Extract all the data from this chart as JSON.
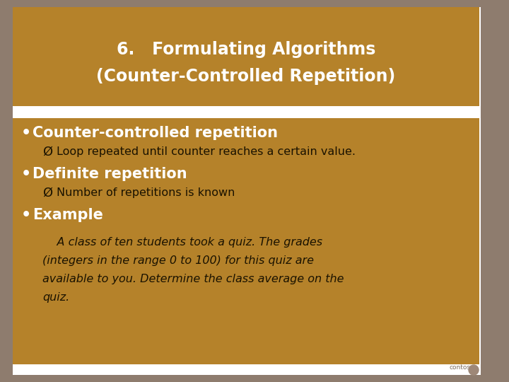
{
  "title_line1": "6.   Formulating Algorithms",
  "title_line2": "(Counter-Controlled Repetition)",
  "title_bg": "#b5822a",
  "title_text_color": "#ffffff",
  "content_bg": "#b5822a",
  "slide_bg": "#ffffff",
  "outer_bg": "#8e7c6e",
  "bullet1_text": "Counter-controlled repetition",
  "bullet1_sub": "Ø  Loop repeated until counter reaches a certain value.",
  "bullet2_text": "Definite repetition",
  "bullet2_sub": "Ø  Number of repetitions is known",
  "bullet3_text": "Example",
  "example_line1": "    A class of ten students took a quiz. The grades",
  "example_line2": "(integers in the range 0 to 100) for this quiz are",
  "example_line3": "available to you. Determine the class average on the",
  "example_line4": "quiz.",
  "bullet_color": "#ffffff",
  "sub_text_color": "#1a1200",
  "example_text_color": "#1a1200",
  "figsize": [
    7.2,
    5.4
  ],
  "dpi": 100
}
